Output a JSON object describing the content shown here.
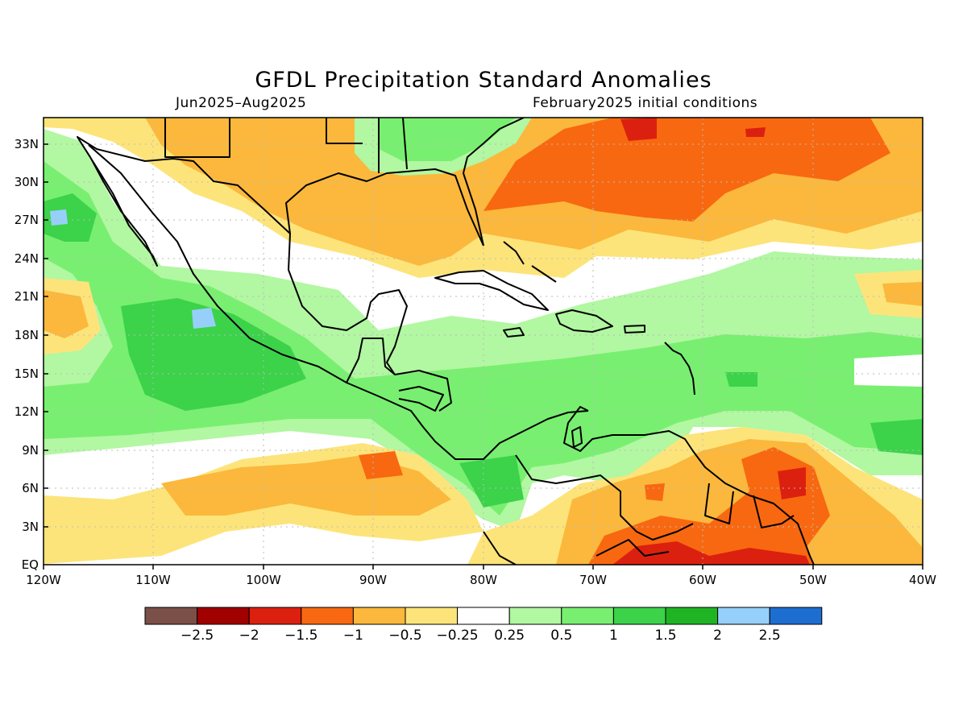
{
  "title": "GFDL Precipitation Standard Anomalies",
  "period": "Jun2025–Aug2025",
  "initial_conditions": "February2025 initial conditions",
  "lat_labels": [
    "33N",
    "30N",
    "27N",
    "24N",
    "21N",
    "18N",
    "15N",
    "12N",
    "9N",
    "6N",
    "3N",
    "EQ"
  ],
  "lon_labels": [
    "120W",
    "110W",
    "100W",
    "90W",
    "80W",
    "70W",
    "60W",
    "50W",
    "40W"
  ],
  "legend": {
    "labels": [
      "−2.5",
      "−2",
      "−1.5",
      "−1",
      "−0.5",
      "−0.25",
      "0.25",
      "0.5",
      "1",
      "1.5",
      "2",
      "2.5"
    ],
    "colors": [
      "#7a5048",
      "#a00000",
      "#dc2010",
      "#f86810",
      "#fbb83c",
      "#fde47a",
      "#ffffff",
      "#b2f7a2",
      "#78ef70",
      "#3cd24a",
      "#1eb424",
      "#96d0fa",
      "#1e6ed2"
    ]
  }
}
